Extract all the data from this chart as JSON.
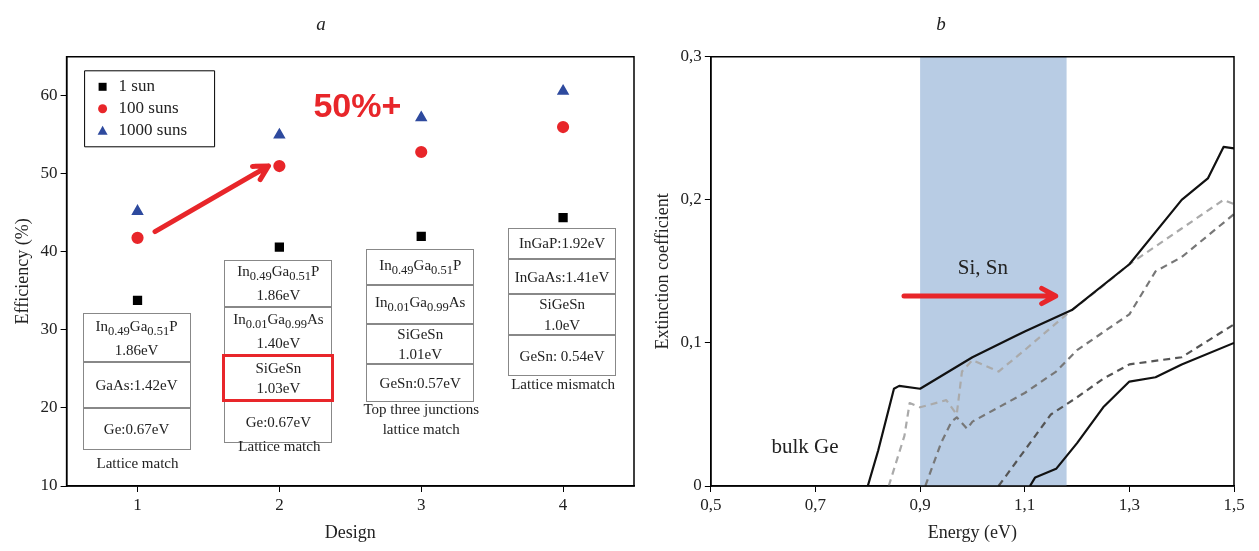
{
  "chart_data": [
    {
      "type": "scatter",
      "title": "a",
      "xlabel": "Design",
      "ylabel": "Efficiency (%)",
      "xlim": [
        0.5,
        4.5
      ],
      "xticks": [
        1,
        2,
        3,
        4
      ],
      "ylim": [
        10,
        65
      ],
      "yticks": [
        10,
        20,
        30,
        40,
        50,
        60
      ],
      "legend": "top left",
      "grid": false,
      "x": [
        1,
        2,
        3,
        4
      ],
      "series": [
        {
          "name": "1 sun",
          "color": "#000000",
          "marker": "square",
          "values": [
            33.8,
            40.6,
            42,
            44.4
          ]
        },
        {
          "name": "100 suns",
          "color": "#e8262a",
          "marker": "circle",
          "values": [
            41.8,
            51,
            52.8,
            56
          ]
        },
        {
          "name": "1000 suns",
          "color": "#2e4a9e",
          "marker": "triangle",
          "values": [
            45.2,
            55,
            57.2,
            60.6
          ]
        }
      ],
      "annotations": [
        "50%+",
        "In$_{0.49}$Ga$_{0.51}$P\n1.86eV",
        "GaAs:1.42eV",
        "Ge:0.67eV",
        "Lattice match",
        "In$_{0.49}$Ga$_{0.51}$P\n1.86eV",
        "In$_{0.01}$Ga$_{0.99}$As\n1.40eV",
        "SiGeSn\n1.03eV",
        "Ge:0.67eV",
        "Lattice match",
        "In$_{0.49}$Ga$_{0.51}$P",
        "In$_{0.01}$Ga$_{0.99}$As",
        "SiGeSn\n1.01eV",
        "GeSn:0.57eV",
        "Top three junctions\nlattice match",
        "InGaP:1.92eV",
        "InGaAs:1.41eV",
        "SiGeSn\n1.0eV",
        "GeSn: 0.54eV",
        "Lattice mismatch"
      ]
    },
    {
      "type": "line",
      "title": "b",
      "xlabel": "Energy (eV)",
      "ylabel": "Extinction coefficient",
      "xlim": [
        0.5,
        1.5
      ],
      "xticks": [
        {
          "value": 0.5,
          "label": "0,5"
        },
        {
          "value": 0.7,
          "label": "0,7"
        },
        {
          "value": 0.9,
          "label": "0,9"
        },
        {
          "value": 1.1,
          "label": "1,1"
        },
        {
          "value": 1.3,
          "label": "1,3"
        },
        {
          "value": 1.5,
          "label": "1,5"
        }
      ],
      "ylim": [
        0,
        0.3
      ],
      "yticks": [
        0,
        {
          "value": 0.1,
          "label": "0,1"
        },
        {
          "value": 0.2,
          "label": "0,2"
        },
        {
          "value": 0.3,
          "label": "0,3"
        }
      ],
      "grid": false,
      "legend": false,
      "bands": [
        {
          "axis": "x",
          "from": 0.9,
          "to": 1.18,
          "color": "#b8cce4"
        }
      ],
      "annotations": [
        "Si, Sn",
        "bulk Ge"
      ],
      "series": [
        {
          "color": "#111111",
          "line_style": "solid",
          "x": [
            0.5,
            0.8,
            0.82,
            0.85,
            0.86,
            0.9,
            1.0,
            1.1,
            1.19,
            1.3,
            1.4,
            1.45,
            1.48,
            1.5
          ],
          "values": [
            0,
            0,
            0.025,
            0.068,
            0.07,
            0.068,
            0.09,
            0.108,
            0.123,
            0.155,
            0.2,
            0.215,
            0.237,
            0.236
          ]
        },
        {
          "color": "#aaaaaa",
          "line_style": "dashed",
          "x": [
            0.84,
            0.87,
            0.88,
            0.9,
            0.95,
            0.97,
            0.98,
            1.0,
            1.05,
            1.1,
            1.18,
            1.25,
            1.3,
            1.4,
            1.48,
            1.5
          ],
          "values": [
            0,
            0.035,
            0.058,
            0.055,
            0.06,
            0.05,
            0.08,
            0.088,
            0.08,
            0.095,
            0.12,
            0.14,
            0.155,
            0.18,
            0.2,
            0.197
          ]
        },
        {
          "color": "#777777",
          "line_style": "dashed",
          "x": [
            0.91,
            0.94,
            0.96,
            0.97,
            0.99,
            1.0,
            1.1,
            1.16,
            1.2,
            1.3,
            1.35,
            1.4,
            1.5
          ],
          "values": [
            0,
            0.03,
            0.045,
            0.048,
            0.04,
            0.045,
            0.065,
            0.08,
            0.095,
            0.12,
            0.15,
            0.16,
            0.19
          ]
        },
        {
          "color": "#555555",
          "line_style": "dashed",
          "x": [
            1.05,
            1.1,
            1.15,
            1.2,
            1.25,
            1.3,
            1.4,
            1.5
          ],
          "values": [
            0,
            0.025,
            0.05,
            0.062,
            0.075,
            0.085,
            0.09,
            0.113
          ]
        },
        {
          "color": "#111111",
          "line_style": "solid",
          "x": [
            1.11,
            1.12,
            1.16,
            1.2,
            1.25,
            1.3,
            1.35,
            1.4,
            1.5
          ],
          "values": [
            0,
            0.006,
            0.012,
            0.03,
            0.055,
            0.073,
            0.076,
            0.085,
            0.1
          ]
        }
      ]
    }
  ]
}
